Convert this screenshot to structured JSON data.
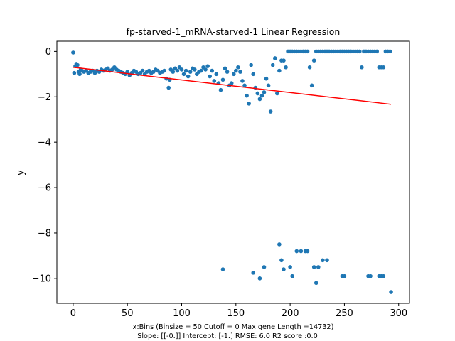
{
  "chart_data": {
    "type": "scatter",
    "title": "fp-starved-1_mRNA-starved-1 Linear Regression",
    "xlabel_lines": [
      "x:Bins  (Binsize = 50 Cutoff = 0 Max gene Length =14732)",
      "Slope: [[-0.]] Intercept: [-1.] RMSE: 6.0 R2 score :0.0"
    ],
    "ylabel": "y",
    "xlim": [
      -15,
      310
    ],
    "ylim": [
      -11.1,
      0.45
    ],
    "xticks": [
      0,
      50,
      100,
      150,
      200,
      250,
      300
    ],
    "yticks": [
      0,
      -2,
      -4,
      -6,
      -8,
      -10
    ],
    "point_color": "#1f77b4",
    "line_color": "#ff0000",
    "regression_line": {
      "x": [
        0,
        293
      ],
      "y": [
        -0.7,
        -2.33
      ]
    },
    "series": [
      {
        "values": [
          [
            0,
            -0.05
          ],
          [
            1,
            -0.95
          ],
          [
            2,
            -0.65
          ],
          [
            3,
            -0.55
          ],
          [
            4,
            -0.6
          ],
          [
            5,
            -0.9
          ],
          [
            6,
            -1.0
          ],
          [
            7,
            -0.8
          ],
          [
            8,
            -0.85
          ],
          [
            10,
            -0.9
          ],
          [
            12,
            -0.85
          ],
          [
            14,
            -0.95
          ],
          [
            16,
            -0.9
          ],
          [
            18,
            -0.85
          ],
          [
            20,
            -0.95
          ],
          [
            22,
            -0.85
          ],
          [
            24,
            -0.9
          ],
          [
            26,
            -0.8
          ],
          [
            28,
            -0.85
          ],
          [
            30,
            -0.8
          ],
          [
            32,
            -0.75
          ],
          [
            34,
            -0.85
          ],
          [
            36,
            -0.8
          ],
          [
            38,
            -0.7
          ],
          [
            40,
            -0.8
          ],
          [
            42,
            -0.85
          ],
          [
            44,
            -0.9
          ],
          [
            46,
            -0.95
          ],
          [
            48,
            -1.0
          ],
          [
            50,
            -0.9
          ],
          [
            52,
            -1.05
          ],
          [
            54,
            -0.95
          ],
          [
            56,
            -0.85
          ],
          [
            58,
            -0.9
          ],
          [
            60,
            -1.0
          ],
          [
            62,
            -0.95
          ],
          [
            64,
            -0.85
          ],
          [
            66,
            -1.0
          ],
          [
            68,
            -0.9
          ],
          [
            70,
            -0.85
          ],
          [
            72,
            -0.95
          ],
          [
            74,
            -0.9
          ],
          [
            76,
            -0.8
          ],
          [
            78,
            -0.85
          ],
          [
            80,
            -0.95
          ],
          [
            82,
            -0.9
          ],
          [
            84,
            -0.85
          ],
          [
            86,
            -1.2
          ],
          [
            88,
            -1.6
          ],
          [
            89,
            -1.25
          ],
          [
            90,
            -0.8
          ],
          [
            92,
            -0.9
          ],
          [
            94,
            -0.75
          ],
          [
            96,
            -0.85
          ],
          [
            98,
            -0.7
          ],
          [
            100,
            -0.8
          ],
          [
            102,
            -1.0
          ],
          [
            104,
            -0.85
          ],
          [
            106,
            -1.1
          ],
          [
            108,
            -0.9
          ],
          [
            110,
            -0.75
          ],
          [
            112,
            -0.8
          ],
          [
            114,
            -1.0
          ],
          [
            116,
            -0.9
          ],
          [
            118,
            -0.85
          ],
          [
            120,
            -0.7
          ],
          [
            122,
            -0.8
          ],
          [
            124,
            -0.65
          ],
          [
            126,
            -1.1
          ],
          [
            128,
            -0.85
          ],
          [
            130,
            -1.3
          ],
          [
            132,
            -1.0
          ],
          [
            134,
            -1.4
          ],
          [
            136,
            -1.7
          ],
          [
            138,
            -1.25
          ],
          [
            140,
            -0.75
          ],
          [
            142,
            -0.9
          ],
          [
            144,
            -1.5
          ],
          [
            146,
            -1.4
          ],
          [
            148,
            -1.0
          ],
          [
            150,
            -0.85
          ],
          [
            152,
            -0.7
          ],
          [
            154,
            -0.9
          ],
          [
            156,
            -1.3
          ],
          [
            158,
            -1.5
          ],
          [
            160,
            -1.95
          ],
          [
            162,
            -2.3
          ],
          [
            164,
            -0.6
          ],
          [
            166,
            -1.0
          ],
          [
            168,
            -1.6
          ],
          [
            170,
            -1.85
          ],
          [
            172,
            -2.1
          ],
          [
            174,
            -1.95
          ],
          [
            176,
            -1.8
          ],
          [
            178,
            -1.2
          ],
          [
            180,
            -1.5
          ],
          [
            182,
            -2.65
          ],
          [
            184,
            -0.6
          ],
          [
            186,
            -0.3
          ],
          [
            188,
            -1.85
          ],
          [
            190,
            -0.85
          ],
          [
            192,
            -0.4
          ],
          [
            194,
            -0.4
          ],
          [
            196,
            -0.7
          ],
          [
            198,
            -0.0
          ],
          [
            200,
            -0.0
          ],
          [
            202,
            -0.0
          ],
          [
            204,
            -0.0
          ],
          [
            206,
            -0.0
          ],
          [
            208,
            -0.0
          ],
          [
            210,
            -0.0
          ],
          [
            212,
            -0.0
          ],
          [
            214,
            -0.0
          ],
          [
            216,
            -0.0
          ],
          [
            218,
            -0.7
          ],
          [
            220,
            -1.5
          ],
          [
            222,
            -0.4
          ],
          [
            224,
            -0.0
          ],
          [
            226,
            -0.0
          ],
          [
            228,
            -0.0
          ],
          [
            230,
            -0.0
          ],
          [
            232,
            -0.0
          ],
          [
            234,
            -0.0
          ],
          [
            236,
            -0.0
          ],
          [
            238,
            -0.0
          ],
          [
            240,
            -0.0
          ],
          [
            242,
            -0.0
          ],
          [
            244,
            -0.0
          ],
          [
            246,
            -0.0
          ],
          [
            248,
            -0.0
          ],
          [
            250,
            -0.0
          ],
          [
            252,
            -0.0
          ],
          [
            254,
            -0.0
          ],
          [
            256,
            -0.0
          ],
          [
            258,
            -0.0
          ],
          [
            260,
            -0.0
          ],
          [
            262,
            -0.0
          ],
          [
            264,
            -0.0
          ],
          [
            266,
            -0.7
          ],
          [
            268,
            -0.0
          ],
          [
            270,
            -0.0
          ],
          [
            272,
            -0.0
          ],
          [
            274,
            -0.0
          ],
          [
            276,
            -0.0
          ],
          [
            278,
            -0.0
          ],
          [
            280,
            -0.0
          ],
          [
            282,
            -0.7
          ],
          [
            284,
            -0.7
          ],
          [
            286,
            -0.7
          ],
          [
            288,
            -0.0
          ],
          [
            290,
            -0.0
          ],
          [
            292,
            -0.0
          ],
          [
            138,
            -9.6
          ],
          [
            166,
            -9.75
          ],
          [
            172,
            -10.0
          ],
          [
            176,
            -9.5
          ],
          [
            190,
            -8.5
          ],
          [
            192,
            -9.2
          ],
          [
            194,
            -9.6
          ],
          [
            200,
            -9.5
          ],
          [
            202,
            -9.9
          ],
          [
            206,
            -8.8
          ],
          [
            210,
            -8.8
          ],
          [
            214,
            -8.8
          ],
          [
            216,
            -8.8
          ],
          [
            222,
            -9.5
          ],
          [
            224,
            -10.2
          ],
          [
            226,
            -9.5
          ],
          [
            230,
            -9.2
          ],
          [
            234,
            -9.2
          ],
          [
            248,
            -9.9
          ],
          [
            250,
            -9.9
          ],
          [
            272,
            -9.9
          ],
          [
            274,
            -9.9
          ],
          [
            282,
            -9.9
          ],
          [
            284,
            -9.9
          ],
          [
            286,
            -9.9
          ],
          [
            293,
            -10.6
          ]
        ]
      }
    ]
  }
}
